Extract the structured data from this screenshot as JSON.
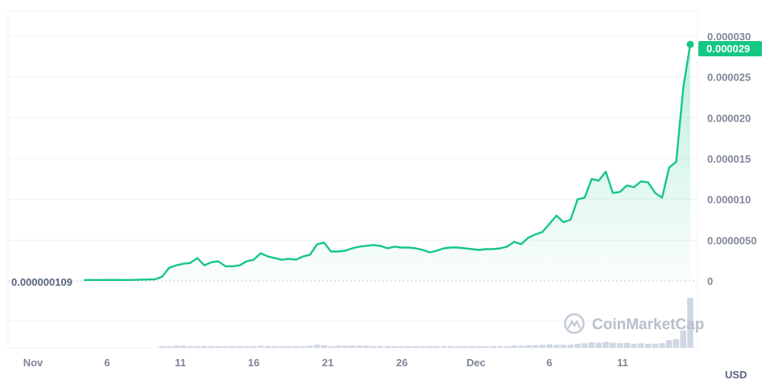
{
  "chart_data": {
    "type": "area",
    "x_tick_labels": [
      "Nov",
      "6",
      "11",
      "16",
      "21",
      "26",
      "Dec",
      "6",
      "11"
    ],
    "y_tick_labels": [
      "0.000030",
      "0.000025",
      "0.000020",
      "0.000015",
      "0.000010",
      "0.0000050",
      "0"
    ],
    "y_tick_values": [
      3e-05,
      2.5e-05,
      2e-05,
      1.5e-05,
      1e-05,
      5e-06,
      0
    ],
    "ylim": [
      0,
      3e-05
    ],
    "start_value_label": "0.000000109",
    "last_price_label": "0.000029",
    "currency_label": "USD",
    "watermark": "CoinMarketCap",
    "line_color": "#16c784",
    "volume_color": "#cfd6e4",
    "grid": true,
    "series": [
      {
        "values": [
          1.1e-07,
          1.2e-07,
          1.2e-07,
          1.2e-07,
          1.3e-07,
          1.2e-07,
          1.2e-07,
          1.3e-07,
          1.6e-07,
          1.8e-07,
          2e-07,
          5e-07,
          1.6e-06,
          1.9e-06,
          2.1e-06,
          2.2e-06,
          2.8e-06,
          1.9e-06,
          2.3e-06,
          2.4e-06,
          1.8e-06,
          1.8e-06,
          1.9e-06,
          2.4e-06,
          2.6e-06,
          3.4e-06,
          3e-06,
          2.8e-06,
          2.6e-06,
          2.7e-06,
          2.6e-06,
          3e-06,
          3.2e-06,
          4.5e-06,
          4.7e-06,
          3.6e-06,
          3.6e-06,
          3.7e-06,
          4e-06,
          4.2e-06,
          4.3e-06,
          4.4e-06,
          4.3e-06,
          4e-06,
          4.2e-06,
          4.1e-06,
          4.1e-06,
          4e-06,
          3.8e-06,
          3.5e-06,
          3.7e-06,
          4e-06,
          4.1e-06,
          4.1e-06,
          4e-06,
          3.9e-06,
          3.8e-06,
          3.9e-06,
          3.9e-06,
          4e-06,
          4.2e-06,
          4.8e-06,
          4.5e-06,
          5.3e-06,
          5.7e-06,
          6e-06,
          7e-06,
          8e-06,
          7.2e-06,
          7.5e-06,
          1e-05,
          1.02e-05,
          1.25e-05,
          1.23e-05,
          1.34e-05,
          1.08e-05,
          1.09e-05,
          1.17e-05,
          1.15e-05,
          1.22e-05,
          1.21e-05,
          1.08e-05,
          1.02e-05,
          1.39e-05,
          1.46e-05,
          2.37e-05,
          2.9e-05
        ]
      }
    ],
    "volume": [
      0,
      0,
      0,
      0,
      0,
      0,
      0,
      0,
      0,
      0,
      0,
      0.03,
      0.03,
      0.04,
      0.04,
      0.03,
      0.03,
      0.03,
      0.03,
      0.03,
      0.03,
      0.03,
      0.03,
      0.03,
      0.03,
      0.04,
      0.03,
      0.03,
      0.03,
      0.03,
      0.03,
      0.03,
      0.04,
      0.06,
      0.05,
      0.03,
      0.04,
      0.04,
      0.04,
      0.04,
      0.04,
      0.03,
      0.03,
      0.03,
      0.03,
      0.03,
      0.03,
      0.03,
      0.03,
      0.03,
      0.03,
      0.03,
      0.03,
      0.03,
      0.03,
      0.03,
      0.03,
      0.03,
      0.03,
      0.03,
      0.03,
      0.04,
      0.04,
      0.05,
      0.05,
      0.06,
      0.07,
      0.06,
      0.06,
      0.06,
      0.08,
      0.09,
      0.11,
      0.1,
      0.12,
      0.1,
      0.09,
      0.1,
      0.08,
      0.09,
      0.08,
      0.08,
      0.09,
      0.15,
      0.17,
      0.35,
      1.0
    ]
  }
}
